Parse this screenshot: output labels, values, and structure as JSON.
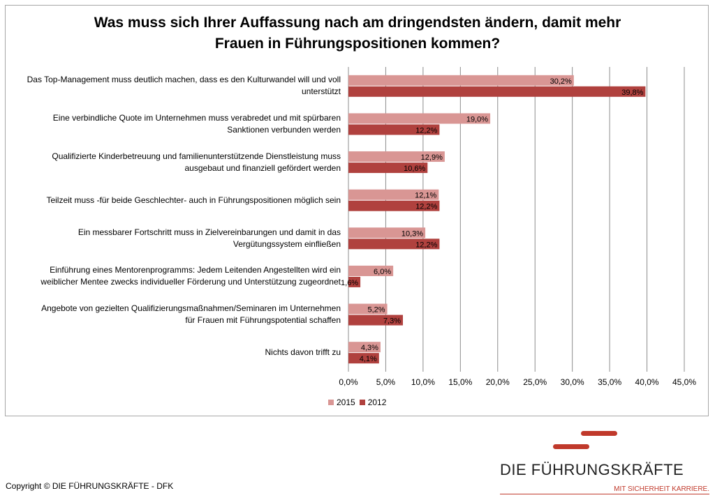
{
  "title": {
    "line1": "Was muss sich Ihrer Auffassung nach am dringendsten ändern, damit mehr",
    "line2": "Frauen in Führungspositionen kommen?"
  },
  "chart_data": {
    "type": "bar",
    "orientation": "horizontal",
    "title": "Was muss sich Ihrer Auffassung nach am dringendsten ändern, damit mehr Frauen in Führungspositionen kommen?",
    "categories": [
      [
        "Das Top-Management muss deutlich machen, dass es den Kulturwandel will und voll",
        "unterstützt"
      ],
      [
        "Eine verbindliche Quote im Unternehmen muss verabredet und mit spürbaren",
        "Sanktionen verbunden werden"
      ],
      [
        "Qualifizierte Kinderbetreuung und familienunterstützende Dienstleistung muss",
        "ausgebaut und finanziell gefördert werden"
      ],
      [
        "Teilzeit muss -für beide Geschlechter- auch in Führungspositionen möglich sein"
      ],
      [
        "Ein messbarer Fortschritt muss in Zielvereinbarungen und damit in das",
        "Vergütungssystem einfließen"
      ],
      [
        "Einführung eines Mentorenprogramms: Jedem Leitenden Angestellten wird ein",
        "weiblicher Mentee zwecks individueller Förderung und Unterstützung zugeordnet"
      ],
      [
        "Angebote von gezielten Qualifizierungsmaßnahmen/Seminaren im Unternehmen",
        "für Frauen mit Führungspotential schaffen"
      ],
      [
        "Nichts davon trifft zu"
      ]
    ],
    "series": [
      {
        "name": "2015",
        "color": "#d99694",
        "values": [
          30.2,
          19.0,
          12.9,
          12.1,
          10.3,
          6.0,
          5.2,
          4.3
        ],
        "labels": [
          "30,2%",
          "19,0%",
          "12,9%",
          "12,1%",
          "10,3%",
          "6,0%",
          "5,2%",
          "4,3%"
        ]
      },
      {
        "name": "2012",
        "color": "#b0413e",
        "values": [
          39.8,
          12.2,
          10.6,
          12.2,
          12.2,
          1.6,
          7.3,
          4.1
        ],
        "labels": [
          "39,8%",
          "12,2%",
          "10,6%",
          "12,2%",
          "12,2%",
          "1,6%",
          "7,3%",
          "4,1%"
        ]
      }
    ],
    "xlim": [
      0,
      45
    ],
    "xticks": [
      "0,0%",
      "5,0%",
      "10,0%",
      "15,0%",
      "20,0%",
      "25,0%",
      "30,0%",
      "35,0%",
      "40,0%",
      "45,0%"
    ],
    "grid": true,
    "legend": "bottom"
  },
  "legend": {
    "items": [
      "2015",
      "2012"
    ]
  },
  "footer": {
    "copyright": "Copyright © DIE FÜHRUNGSKRÄFTE - DFK",
    "logo_name": "DIE FÜHRUNGSKRÄFTE",
    "logo_claim": "MIT SICHERHEIT KARRIERE."
  }
}
